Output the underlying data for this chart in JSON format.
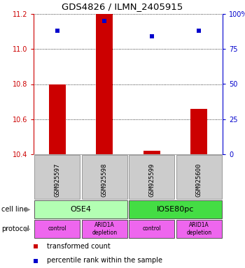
{
  "title": "GDS4826 / ILMN_2405915",
  "samples": [
    "GSM925597",
    "GSM925598",
    "GSM925599",
    "GSM925600"
  ],
  "red_values": [
    10.8,
    11.2,
    10.42,
    10.66
  ],
  "blue_values": [
    88,
    95,
    84,
    88
  ],
  "ylim_left": [
    10.4,
    11.2
  ],
  "ylim_right": [
    0,
    100
  ],
  "yticks_left": [
    10.4,
    10.6,
    10.8,
    11.0,
    11.2
  ],
  "yticks_right": [
    0,
    25,
    50,
    75,
    100
  ],
  "ytick_labels_right": [
    "0",
    "25",
    "50",
    "75",
    "100%"
  ],
  "cell_line_labels": [
    "OSE4",
    "IOSE80pc"
  ],
  "cell_line_spans": [
    [
      0,
      2
    ],
    [
      2,
      4
    ]
  ],
  "cell_line_colors": [
    "#b3ffb3",
    "#44dd44"
  ],
  "protocol_labels": [
    "control",
    "ARID1A\ndepletion",
    "control",
    "ARID1A\ndepletion"
  ],
  "protocol_color": "#ee66ee",
  "sample_box_color": "#cccccc",
  "bar_color": "#cc0000",
  "dot_color": "#0000cc",
  "left_axis_color": "#cc0000",
  "right_axis_color": "#0000cc"
}
